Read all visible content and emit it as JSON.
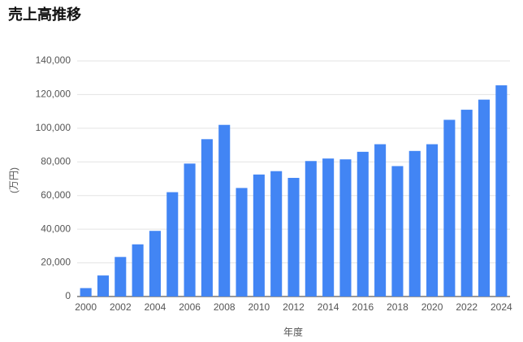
{
  "chart_data": {
    "type": "bar",
    "title": "売上高推移",
    "x_label": "年度",
    "y_label": "(万円)",
    "categories": [
      "2000",
      null,
      "2002",
      null,
      "2004",
      null,
      "2006",
      null,
      "2008",
      null,
      "2010",
      null,
      "2012",
      null,
      "2014",
      null,
      "2016",
      null,
      "2018",
      null,
      "2020",
      null,
      "2022",
      null,
      "2024"
    ],
    "values": [
      5000,
      12500,
      23500,
      31000,
      39000,
      62000,
      79000,
      93500,
      102000,
      64500,
      72500,
      74500,
      70500,
      80500,
      82000,
      81500,
      86000,
      90500,
      77500,
      86500,
      90500,
      105000,
      111000,
      117000,
      125500
    ],
    "color": "#4285f4",
    "ylim": [
      0,
      140000
    ],
    "yticks": [
      0,
      {
        "value": 20000,
        "label": "20,000"
      },
      {
        "value": 40000,
        "label": "40,000"
      },
      {
        "value": 60000,
        "label": "60,000"
      },
      {
        "value": 80000,
        "label": "80,000"
      },
      {
        "value": 100000,
        "label": "100,000"
      },
      {
        "value": 120000,
        "label": "120,000"
      },
      {
        "value": 140000,
        "label": "140,000"
      }
    ],
    "grid": true
  }
}
